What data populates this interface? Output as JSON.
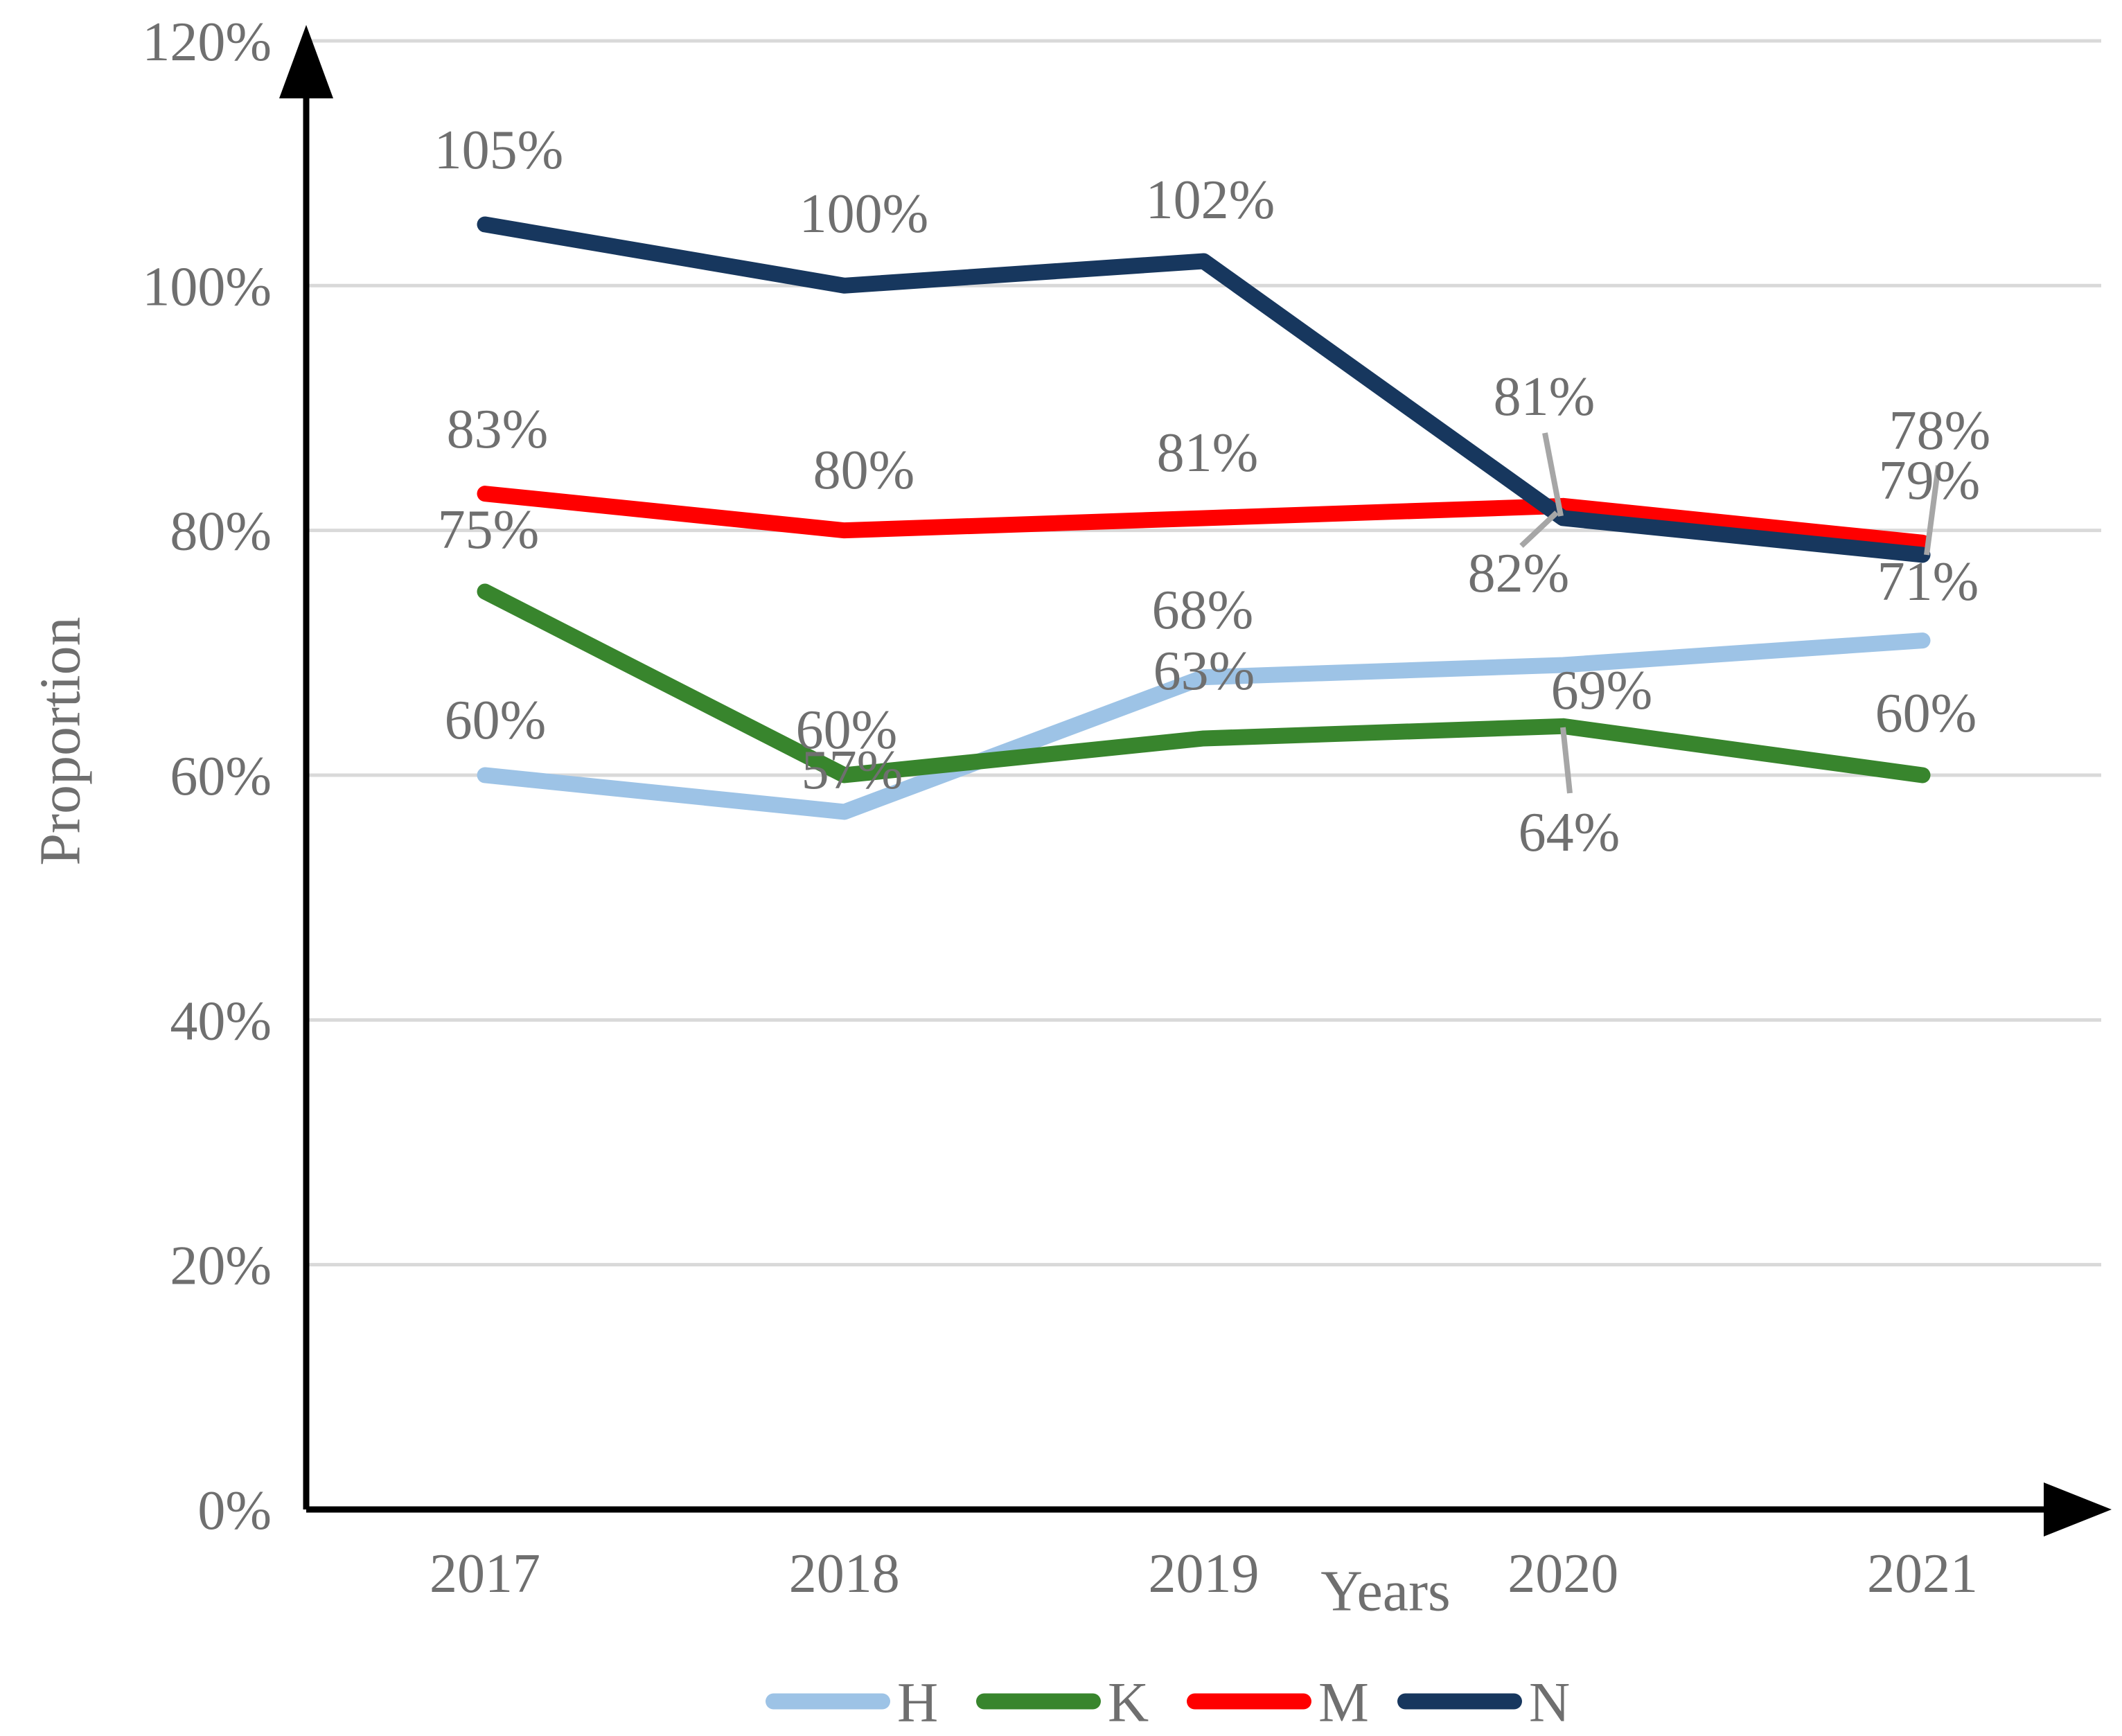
{
  "chart_data": {
    "type": "line",
    "categories": [
      "2017",
      "2018",
      "2019",
      "2020",
      "2021"
    ],
    "series": [
      {
        "name": "H",
        "color": "#9DC3E6",
        "values": [
          60,
          57,
          68,
          69,
          71
        ],
        "labels": [
          "60%",
          "57%",
          "68%",
          "69%",
          "71%"
        ]
      },
      {
        "name": "K",
        "color": "#38852D",
        "values": [
          75,
          60,
          63,
          64,
          60
        ],
        "labels": [
          "75%",
          "60%",
          "63%",
          "64%",
          "60%"
        ]
      },
      {
        "name": "M",
        "color": "#FF0000",
        "values": [
          83,
          80,
          81,
          82,
          79
        ],
        "labels": [
          "83%",
          "80%",
          "81%",
          "82%",
          "79%"
        ]
      },
      {
        "name": "N",
        "color": "#17375E",
        "values": [
          105,
          100,
          102,
          81,
          78
        ],
        "labels": [
          "105%",
          "100%",
          "102%",
          "81%",
          "78%"
        ]
      }
    ],
    "title": "",
    "xlabel": "Years",
    "ylabel": "Proportion",
    "ylim": [
      0,
      120
    ],
    "yticks": [
      "0%",
      "20%",
      "40%",
      "60%",
      "80%",
      "100%",
      "120%"
    ],
    "grid": true,
    "legend_position": "bottom",
    "legend": [
      "H",
      "K",
      "M",
      "N"
    ],
    "colors": {
      "gridline": "#D9D9D9",
      "axis": "#000000",
      "text": "#6F6F6F",
      "leader": "#A6A6A6"
    }
  }
}
